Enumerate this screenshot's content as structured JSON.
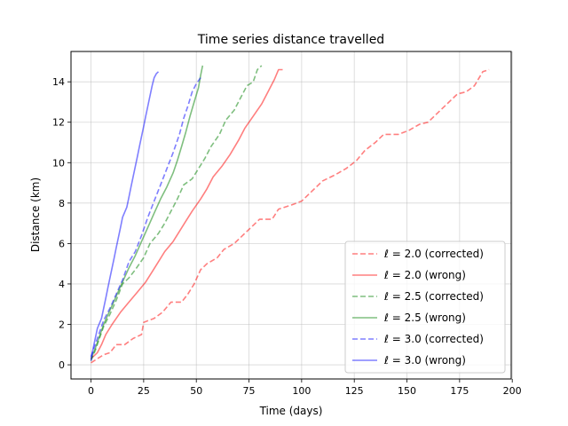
{
  "chart_data": {
    "type": "line",
    "title": "Time series distance travelled",
    "xlabel": "Time (days)",
    "ylabel": "Distance (km)",
    "xlim": [
      -9.5,
      199.5
    ],
    "ylim": [
      -0.7,
      15.5
    ],
    "xticks": [
      0,
      25,
      50,
      75,
      100,
      125,
      150,
      175,
      200
    ],
    "yticks": [
      0,
      2,
      4,
      6,
      8,
      10,
      12,
      14
    ],
    "grid": true,
    "legend_position": "lower-right",
    "series": [
      {
        "name": "ℓ = 2.0 (corrected)",
        "color": "#ff0000",
        "dash": "dashed",
        "points": [
          [
            0,
            0.1
          ],
          [
            3,
            0.3
          ],
          [
            6,
            0.5
          ],
          [
            9,
            0.6
          ],
          [
            12,
            1.0
          ],
          [
            16,
            1.0
          ],
          [
            20,
            1.3
          ],
          [
            24,
            1.5
          ],
          [
            25,
            2.1
          ],
          [
            30,
            2.3
          ],
          [
            34,
            2.6
          ],
          [
            38,
            3.1
          ],
          [
            43,
            3.1
          ],
          [
            46,
            3.5
          ],
          [
            49,
            4.0
          ],
          [
            52,
            4.7
          ],
          [
            55,
            5.0
          ],
          [
            60,
            5.3
          ],
          [
            63,
            5.7
          ],
          [
            68,
            6.0
          ],
          [
            72,
            6.4
          ],
          [
            77,
            6.9
          ],
          [
            80,
            7.2
          ],
          [
            86,
            7.2
          ],
          [
            89,
            7.7
          ],
          [
            95,
            7.9
          ],
          [
            100,
            8.1
          ],
          [
            105,
            8.6
          ],
          [
            110,
            9.1
          ],
          [
            116,
            9.4
          ],
          [
            121,
            9.7
          ],
          [
            126,
            10.1
          ],
          [
            130,
            10.6
          ],
          [
            135,
            11.0
          ],
          [
            139,
            11.4
          ],
          [
            146,
            11.4
          ],
          [
            151,
            11.6
          ],
          [
            156,
            11.9
          ],
          [
            160,
            12.0
          ],
          [
            165,
            12.5
          ],
          [
            169,
            12.9
          ],
          [
            174,
            13.4
          ],
          [
            178,
            13.5
          ],
          [
            182,
            13.8
          ],
          [
            186,
            14.5
          ],
          [
            189,
            14.6
          ]
        ]
      },
      {
        "name": "ℓ = 2.0 (wrong)",
        "color": "#ff0000",
        "dash": "solid",
        "points": [
          [
            0,
            0.3
          ],
          [
            3,
            0.6
          ],
          [
            5,
            1.0
          ],
          [
            7,
            1.5
          ],
          [
            10,
            2.0
          ],
          [
            14,
            2.6
          ],
          [
            18,
            3.1
          ],
          [
            22,
            3.6
          ],
          [
            26,
            4.1
          ],
          [
            29,
            4.6
          ],
          [
            32,
            5.1
          ],
          [
            35,
            5.6
          ],
          [
            39,
            6.1
          ],
          [
            42,
            6.6
          ],
          [
            45,
            7.1
          ],
          [
            48,
            7.6
          ],
          [
            52,
            8.2
          ],
          [
            55,
            8.7
          ],
          [
            58,
            9.3
          ],
          [
            62,
            9.8
          ],
          [
            66,
            10.4
          ],
          [
            70,
            11.1
          ],
          [
            73,
            11.7
          ],
          [
            77,
            12.3
          ],
          [
            81,
            12.9
          ],
          [
            84,
            13.5
          ],
          [
            87,
            14.1
          ],
          [
            89,
            14.6
          ],
          [
            91,
            14.6
          ]
        ]
      },
      {
        "name": "ℓ = 2.5 (corrected)",
        "color": "#008000",
        "dash": "dashed",
        "points": [
          [
            0,
            0.2
          ],
          [
            2,
            0.7
          ],
          [
            4,
            1.3
          ],
          [
            6,
            1.9
          ],
          [
            9,
            2.5
          ],
          [
            12,
            3.2
          ],
          [
            15,
            4.0
          ],
          [
            18,
            4.3
          ],
          [
            21,
            4.7
          ],
          [
            25,
            5.3
          ],
          [
            28,
            6.0
          ],
          [
            32,
            6.5
          ],
          [
            35,
            7.0
          ],
          [
            38,
            7.6
          ],
          [
            41,
            8.2
          ],
          [
            44,
            8.9
          ],
          [
            48,
            9.2
          ],
          [
            51,
            9.7
          ],
          [
            54,
            10.2
          ],
          [
            57,
            10.8
          ],
          [
            61,
            11.4
          ],
          [
            64,
            12.1
          ],
          [
            68,
            12.6
          ],
          [
            71,
            13.2
          ],
          [
            74,
            13.8
          ],
          [
            77,
            14.0
          ],
          [
            79,
            14.6
          ],
          [
            81,
            14.8
          ]
        ]
      },
      {
        "name": "ℓ = 2.5 (wrong)",
        "color": "#008000",
        "dash": "solid",
        "points": [
          [
            0,
            0.3
          ],
          [
            2,
            0.8
          ],
          [
            4,
            1.4
          ],
          [
            6,
            2.0
          ],
          [
            9,
            2.7
          ],
          [
            12,
            3.4
          ],
          [
            15,
            4.1
          ],
          [
            18,
            4.8
          ],
          [
            21,
            5.4
          ],
          [
            24,
            6.1
          ],
          [
            27,
            6.8
          ],
          [
            30,
            7.5
          ],
          [
            33,
            8.2
          ],
          [
            36,
            8.8
          ],
          [
            39,
            9.5
          ],
          [
            41,
            10.1
          ],
          [
            43,
            10.8
          ],
          [
            45,
            11.5
          ],
          [
            47,
            12.3
          ],
          [
            49,
            13.0
          ],
          [
            51,
            13.7
          ],
          [
            52,
            14.3
          ],
          [
            53,
            14.8
          ]
        ]
      },
      {
        "name": "ℓ = 3.0 (corrected)",
        "color": "#0000ff",
        "dash": "dashed",
        "points": [
          [
            0,
            0.4
          ],
          [
            2,
            1.0
          ],
          [
            4,
            1.6
          ],
          [
            6,
            2.2
          ],
          [
            9,
            2.8
          ],
          [
            12,
            3.5
          ],
          [
            15,
            4.2
          ],
          [
            18,
            5.1
          ],
          [
            21,
            5.6
          ],
          [
            24,
            6.4
          ],
          [
            27,
            7.3
          ],
          [
            30,
            8.1
          ],
          [
            33,
            8.9
          ],
          [
            36,
            9.7
          ],
          [
            39,
            10.5
          ],
          [
            42,
            11.4
          ],
          [
            44,
            12.2
          ],
          [
            46,
            12.8
          ],
          [
            48,
            13.5
          ],
          [
            50,
            13.9
          ],
          [
            52,
            14.2
          ]
        ]
      },
      {
        "name": "ℓ = 3.0 (wrong)",
        "color": "#0000ff",
        "dash": "solid",
        "points": [
          [
            0,
            0.2
          ],
          [
            1,
            0.8
          ],
          [
            2,
            1.3
          ],
          [
            3,
            1.8
          ],
          [
            5,
            2.3
          ],
          [
            6,
            2.8
          ],
          [
            7,
            3.3
          ],
          [
            8,
            3.8
          ],
          [
            9,
            4.3
          ],
          [
            10,
            4.8
          ],
          [
            11,
            5.3
          ],
          [
            12,
            5.8
          ],
          [
            13,
            6.3
          ],
          [
            14,
            6.8
          ],
          [
            15,
            7.3
          ],
          [
            17,
            7.8
          ],
          [
            18,
            8.3
          ],
          [
            19,
            8.8
          ],
          [
            20,
            9.3
          ],
          [
            21,
            9.8
          ],
          [
            22,
            10.3
          ],
          [
            23,
            10.8
          ],
          [
            24,
            11.3
          ],
          [
            25,
            11.8
          ],
          [
            26,
            12.3
          ],
          [
            27,
            12.8
          ],
          [
            28,
            13.3
          ],
          [
            29,
            13.8
          ],
          [
            30,
            14.2
          ],
          [
            31,
            14.4
          ],
          [
            32,
            14.5
          ]
        ]
      }
    ]
  }
}
